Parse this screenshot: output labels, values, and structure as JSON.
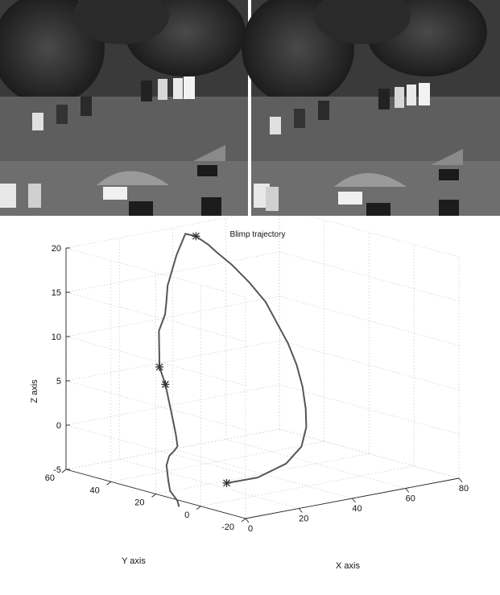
{
  "photo": {
    "panels": [
      "aerial-view-left",
      "aerial-view-right"
    ],
    "colors": {
      "asphalt": "#6a6a6a",
      "trees": "#2c2c2c",
      "grass": "#505050"
    }
  },
  "chart_data": {
    "type": "line3d",
    "title": "Blimp trajectory",
    "xlabel": "X axis",
    "ylabel": "Y axis",
    "zlabel": "Z axis",
    "xlim": [
      0,
      80
    ],
    "ylim": [
      -20,
      60
    ],
    "zlim": [
      -5,
      20
    ],
    "x_ticks": [
      "0",
      "20",
      "40",
      "60",
      "80"
    ],
    "y_ticks": [
      "-20",
      "0",
      "20",
      "40",
      "60"
    ],
    "z_ticks": [
      "-5",
      "0",
      "5",
      "10",
      "15",
      "20"
    ],
    "grid": true,
    "series": [
      {
        "color": "#555555",
        "points": [
          [
            3,
            -8,
            -2
          ],
          [
            18,
            -4,
            -2.5
          ],
          [
            32,
            0,
            -2
          ],
          [
            42,
            5,
            -1
          ],
          [
            48,
            10,
            0.5
          ],
          [
            52,
            15,
            2
          ],
          [
            55,
            20,
            4
          ],
          [
            57,
            25,
            6
          ],
          [
            58,
            30,
            8
          ],
          [
            58,
            35,
            10
          ],
          [
            58,
            40,
            12
          ],
          [
            56,
            45,
            14
          ],
          [
            52,
            48,
            16
          ],
          [
            48,
            50,
            17.5
          ],
          [
            45,
            50,
            18.5
          ],
          [
            42,
            52,
            19.5
          ],
          [
            38,
            52,
            20
          ],
          [
            33,
            50,
            18
          ],
          [
            28,
            48,
            15
          ],
          [
            25,
            45,
            13.5
          ],
          [
            22,
            42,
            12.5
          ],
          [
            18,
            40,
            11
          ],
          [
            14,
            35,
            7.5
          ],
          [
            12,
            30,
            6
          ],
          [
            11,
            26,
            3
          ],
          [
            10,
            23,
            1
          ],
          [
            9,
            21,
            -0.2
          ],
          [
            7,
            20,
            -0.5
          ],
          [
            5,
            20,
            -1
          ],
          [
            4,
            20,
            -2
          ],
          [
            3,
            18,
            -3.5
          ],
          [
            2,
            16,
            -4.5
          ],
          [
            3,
            14,
            -5.5
          ],
          [
            2,
            12,
            -6
          ]
        ]
      }
    ],
    "markers": [
      [
        3,
        -8,
        -2
      ],
      [
        14,
        35,
        7.5
      ],
      [
        12,
        30,
        6
      ],
      [
        42,
        52,
        19.5
      ]
    ]
  }
}
